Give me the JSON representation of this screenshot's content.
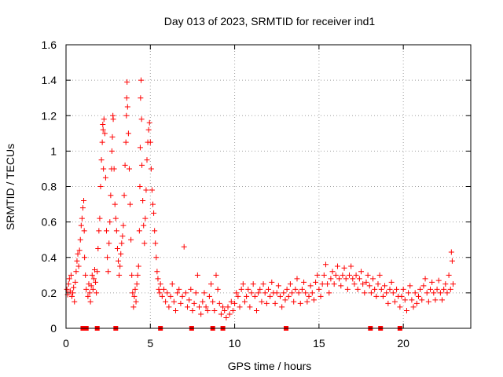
{
  "chart_data": {
    "type": "scatter",
    "title": "Day 013 of 2023, SRMTID for receiver ind1",
    "xlabel": "GPS time / hours",
    "ylabel": "SRMTID / TECUs",
    "xlim": [
      0,
      24
    ],
    "ylim": [
      0,
      1.6
    ],
    "grid": true,
    "marker": "+",
    "color": "#ff0000",
    "x_ticks": [
      {
        "value": 0,
        "label": "0"
      },
      {
        "value": 5,
        "label": "5"
      },
      {
        "value": 10,
        "label": "10"
      },
      {
        "value": 15,
        "label": "15"
      },
      {
        "value": 20,
        "label": "20"
      }
    ],
    "y_ticks": [
      {
        "value": 0,
        "label": "0"
      },
      {
        "value": 0.2,
        "label": "0.2"
      },
      {
        "value": 0.4,
        "label": "0.4"
      },
      {
        "value": 0.6,
        "label": "0.6"
      },
      {
        "value": 0.8,
        "label": "0.8"
      },
      {
        "value": 1.0,
        "label": "1"
      },
      {
        "value": 1.2,
        "label": "1.2"
      },
      {
        "value": 1.4,
        "label": "1.4"
      },
      {
        "value": 1.6,
        "label": "1.6"
      }
    ],
    "zero_markers_x": [
      1.0,
      1.2,
      1.85,
      2.95,
      5.6,
      7.45,
      8.7,
      9.3,
      13.05,
      18.05,
      18.65,
      19.8
    ],
    "series": [
      {
        "name": "SRMTID",
        "points": [
          [
            0.05,
            0.22
          ],
          [
            0.1,
            0.19
          ],
          [
            0.15,
            0.25
          ],
          [
            0.2,
            0.28
          ],
          [
            0.25,
            0.21
          ],
          [
            0.3,
            0.3
          ],
          [
            0.35,
            0.18
          ],
          [
            0.4,
            0.2
          ],
          [
            0.45,
            0.23
          ],
          [
            0.5,
            0.15
          ],
          [
            0.55,
            0.26
          ],
          [
            0.6,
            0.32
          ],
          [
            0.65,
            0.38
          ],
          [
            0.7,
            0.42
          ],
          [
            0.75,
            0.35
          ],
          [
            0.8,
            0.44
          ],
          [
            0.85,
            0.5
          ],
          [
            0.9,
            0.58
          ],
          [
            0.95,
            0.62
          ],
          [
            1.0,
            0.68
          ],
          [
            1.05,
            0.72
          ],
          [
            1.08,
            0.55
          ],
          [
            1.1,
            0.4
          ],
          [
            1.15,
            0.3
          ],
          [
            1.2,
            0.22
          ],
          [
            1.3,
            0.18
          ],
          [
            1.35,
            0.25
          ],
          [
            1.4,
            0.2
          ],
          [
            1.45,
            0.15
          ],
          [
            1.5,
            0.24
          ],
          [
            1.55,
            0.3
          ],
          [
            1.6,
            0.22
          ],
          [
            1.65,
            0.28
          ],
          [
            1.7,
            0.33
          ],
          [
            1.75,
            0.26
          ],
          [
            1.8,
            0.2
          ],
          [
            1.85,
            0.32
          ],
          [
            1.9,
            0.45
          ],
          [
            1.95,
            0.55
          ],
          [
            2.0,
            0.62
          ],
          [
            2.05,
            0.8
          ],
          [
            2.1,
            0.95
          ],
          [
            2.15,
            1.05
          ],
          [
            2.18,
            1.15
          ],
          [
            2.2,
            1.12
          ],
          [
            2.22,
            0.9
          ],
          [
            2.25,
            1.18
          ],
          [
            2.3,
            1.1
          ],
          [
            2.35,
            0.85
          ],
          [
            2.4,
            0.55
          ],
          [
            2.45,
            0.4
          ],
          [
            2.5,
            0.32
          ],
          [
            2.55,
            0.48
          ],
          [
            2.6,
            0.6
          ],
          [
            2.65,
            0.75
          ],
          [
            2.7,
            0.9
          ],
          [
            2.72,
            1.0
          ],
          [
            2.75,
            1.08
          ],
          [
            2.78,
            1.2
          ],
          [
            2.8,
            1.18
          ],
          [
            2.85,
            0.9
          ],
          [
            2.9,
            0.7
          ],
          [
            2.95,
            0.62
          ],
          [
            3.0,
            0.55
          ],
          [
            3.05,
            0.45
          ],
          [
            3.1,
            0.38
          ],
          [
            3.15,
            0.3
          ],
          [
            3.2,
            0.35
          ],
          [
            3.25,
            0.42
          ],
          [
            3.3,
            0.48
          ],
          [
            3.35,
            0.52
          ],
          [
            3.4,
            0.58
          ],
          [
            3.45,
            0.75
          ],
          [
            3.5,
            0.92
          ],
          [
            3.55,
            1.05
          ],
          [
            3.58,
            1.2
          ],
          [
            3.6,
            1.3
          ],
          [
            3.62,
            1.39
          ],
          [
            3.65,
            1.25
          ],
          [
            3.7,
            1.1
          ],
          [
            3.75,
            0.9
          ],
          [
            3.8,
            0.7
          ],
          [
            3.85,
            0.5
          ],
          [
            3.9,
            0.3
          ],
          [
            3.95,
            0.2
          ],
          [
            4.0,
            0.12
          ],
          [
            4.05,
            0.18
          ],
          [
            4.1,
            0.22
          ],
          [
            4.15,
            0.15
          ],
          [
            4.2,
            0.25
          ],
          [
            4.25,
            0.3
          ],
          [
            4.3,
            0.35
          ],
          [
            4.35,
            0.55
          ],
          [
            4.38,
            0.8
          ],
          [
            4.4,
            1.02
          ],
          [
            4.42,
            1.3
          ],
          [
            4.45,
            1.4
          ],
          [
            4.48,
            1.18
          ],
          [
            4.5,
            0.92
          ],
          [
            4.55,
            0.72
          ],
          [
            4.6,
            0.58
          ],
          [
            4.65,
            0.48
          ],
          [
            4.7,
            0.62
          ],
          [
            4.75,
            0.78
          ],
          [
            4.8,
            0.95
          ],
          [
            4.85,
            1.05
          ],
          [
            4.9,
            1.12
          ],
          [
            4.95,
            1.16
          ],
          [
            5.0,
            1.05
          ],
          [
            5.05,
            0.9
          ],
          [
            5.1,
            0.78
          ],
          [
            5.15,
            0.7
          ],
          [
            5.2,
            0.65
          ],
          [
            5.25,
            0.55
          ],
          [
            5.3,
            0.48
          ],
          [
            5.35,
            0.4
          ],
          [
            5.4,
            0.32
          ],
          [
            5.45,
            0.28
          ],
          [
            5.5,
            0.22
          ],
          [
            5.55,
            0.2
          ],
          [
            5.6,
            0.25
          ],
          [
            5.7,
            0.18
          ],
          [
            5.8,
            0.22
          ],
          [
            5.9,
            0.15
          ],
          [
            6.0,
            0.2
          ],
          [
            6.1,
            0.12
          ],
          [
            6.2,
            0.18
          ],
          [
            6.3,
            0.25
          ],
          [
            6.4,
            0.15
          ],
          [
            6.5,
            0.1
          ],
          [
            6.6,
            0.2
          ],
          [
            6.7,
            0.22
          ],
          [
            6.8,
            0.14
          ],
          [
            6.9,
            0.18
          ],
          [
            7.0,
            0.46
          ],
          [
            7.1,
            0.2
          ],
          [
            7.2,
            0.12
          ],
          [
            7.3,
            0.16
          ],
          [
            7.4,
            0.22
          ],
          [
            7.5,
            0.1
          ],
          [
            7.6,
            0.14
          ],
          [
            7.7,
            0.2
          ],
          [
            7.8,
            0.3
          ],
          [
            7.9,
            0.12
          ],
          [
            8.0,
            0.08
          ],
          [
            8.1,
            0.15
          ],
          [
            8.2,
            0.2
          ],
          [
            8.3,
            0.12
          ],
          [
            8.4,
            0.1
          ],
          [
            8.5,
            0.18
          ],
          [
            8.6,
            0.25
          ],
          [
            8.7,
            0.15
          ],
          [
            8.8,
            0.1
          ],
          [
            8.9,
            0.3
          ],
          [
            9.0,
            0.22
          ],
          [
            9.1,
            0.14
          ],
          [
            9.2,
            0.08
          ],
          [
            9.3,
            0.12
          ],
          [
            9.4,
            0.1
          ],
          [
            9.5,
            0.06
          ],
          [
            9.6,
            0.12
          ],
          [
            9.7,
            0.08
          ],
          [
            9.8,
            0.15
          ],
          [
            9.9,
            0.1
          ],
          [
            10.0,
            0.14
          ],
          [
            10.1,
            0.2
          ],
          [
            10.2,
            0.18
          ],
          [
            10.3,
            0.12
          ],
          [
            10.4,
            0.22
          ],
          [
            10.5,
            0.25
          ],
          [
            10.6,
            0.15
          ],
          [
            10.7,
            0.18
          ],
          [
            10.8,
            0.22
          ],
          [
            10.9,
            0.12
          ],
          [
            11.0,
            0.2
          ],
          [
            11.1,
            0.25
          ],
          [
            11.2,
            0.18
          ],
          [
            11.3,
            0.1
          ],
          [
            11.4,
            0.2
          ],
          [
            11.5,
            0.22
          ],
          [
            11.6,
            0.15
          ],
          [
            11.7,
            0.25
          ],
          [
            11.8,
            0.2
          ],
          [
            11.9,
            0.14
          ],
          [
            12.0,
            0.22
          ],
          [
            12.1,
            0.18
          ],
          [
            12.2,
            0.26
          ],
          [
            12.3,
            0.2
          ],
          [
            12.4,
            0.14
          ],
          [
            12.5,
            0.2
          ],
          [
            12.6,
            0.24
          ],
          [
            12.7,
            0.18
          ],
          [
            12.8,
            0.12
          ],
          [
            12.9,
            0.2
          ],
          [
            13.0,
            0.16
          ],
          [
            13.1,
            0.22
          ],
          [
            13.2,
            0.18
          ],
          [
            13.3,
            0.25
          ],
          [
            13.4,
            0.2
          ],
          [
            13.5,
            0.15
          ],
          [
            13.6,
            0.22
          ],
          [
            13.7,
            0.28
          ],
          [
            13.8,
            0.2
          ],
          [
            13.9,
            0.14
          ],
          [
            14.0,
            0.22
          ],
          [
            14.1,
            0.26
          ],
          [
            14.2,
            0.2
          ],
          [
            14.3,
            0.15
          ],
          [
            14.4,
            0.18
          ],
          [
            14.5,
            0.24
          ],
          [
            14.6,
            0.2
          ],
          [
            14.7,
            0.16
          ],
          [
            14.8,
            0.26
          ],
          [
            14.9,
            0.3
          ],
          [
            15.0,
            0.22
          ],
          [
            15.1,
            0.18
          ],
          [
            15.2,
            0.25
          ],
          [
            15.3,
            0.3
          ],
          [
            15.4,
            0.36
          ],
          [
            15.5,
            0.25
          ],
          [
            15.6,
            0.2
          ],
          [
            15.7,
            0.28
          ],
          [
            15.8,
            0.32
          ],
          [
            15.9,
            0.25
          ],
          [
            16.0,
            0.3
          ],
          [
            16.1,
            0.35
          ],
          [
            16.2,
            0.28
          ],
          [
            16.3,
            0.24
          ],
          [
            16.4,
            0.3
          ],
          [
            16.5,
            0.34
          ],
          [
            16.6,
            0.28
          ],
          [
            16.7,
            0.22
          ],
          [
            16.8,
            0.3
          ],
          [
            16.9,
            0.35
          ],
          [
            17.0,
            0.28
          ],
          [
            17.1,
            0.25
          ],
          [
            17.2,
            0.3
          ],
          [
            17.3,
            0.22
          ],
          [
            17.4,
            0.28
          ],
          [
            17.5,
            0.32
          ],
          [
            17.6,
            0.25
          ],
          [
            17.7,
            0.2
          ],
          [
            17.8,
            0.26
          ],
          [
            17.9,
            0.3
          ],
          [
            18.0,
            0.24
          ],
          [
            18.1,
            0.2
          ],
          [
            18.2,
            0.28
          ],
          [
            18.3,
            0.22
          ],
          [
            18.4,
            0.18
          ],
          [
            18.5,
            0.25
          ],
          [
            18.6,
            0.3
          ],
          [
            18.7,
            0.22
          ],
          [
            18.8,
            0.18
          ],
          [
            18.9,
            0.24
          ],
          [
            19.0,
            0.2
          ],
          [
            19.1,
            0.14
          ],
          [
            19.2,
            0.22
          ],
          [
            19.3,
            0.26
          ],
          [
            19.4,
            0.2
          ],
          [
            19.5,
            0.15
          ],
          [
            19.6,
            0.22
          ],
          [
            19.7,
            0.18
          ],
          [
            19.8,
            0.12
          ],
          [
            19.9,
            0.18
          ],
          [
            20.0,
            0.22
          ],
          [
            20.1,
            0.16
          ],
          [
            20.2,
            0.1
          ],
          [
            20.3,
            0.2
          ],
          [
            20.4,
            0.24
          ],
          [
            20.5,
            0.16
          ],
          [
            20.6,
            0.12
          ],
          [
            20.7,
            0.2
          ],
          [
            20.8,
            0.14
          ],
          [
            20.9,
            0.18
          ],
          [
            21.0,
            0.22
          ],
          [
            21.1,
            0.16
          ],
          [
            21.2,
            0.24
          ],
          [
            21.3,
            0.28
          ],
          [
            21.4,
            0.2
          ],
          [
            21.5,
            0.15
          ],
          [
            21.6,
            0.22
          ],
          [
            21.7,
            0.26
          ],
          [
            21.8,
            0.2
          ],
          [
            21.9,
            0.16
          ],
          [
            22.0,
            0.22
          ],
          [
            22.1,
            0.27
          ],
          [
            22.2,
            0.2
          ],
          [
            22.3,
            0.16
          ],
          [
            22.4,
            0.22
          ],
          [
            22.5,
            0.25
          ],
          [
            22.6,
            0.2
          ],
          [
            22.7,
            0.3
          ],
          [
            22.8,
            0.22
          ],
          [
            22.85,
            0.43
          ],
          [
            22.9,
            0.38
          ],
          [
            22.95,
            0.25
          ]
        ]
      }
    ]
  }
}
